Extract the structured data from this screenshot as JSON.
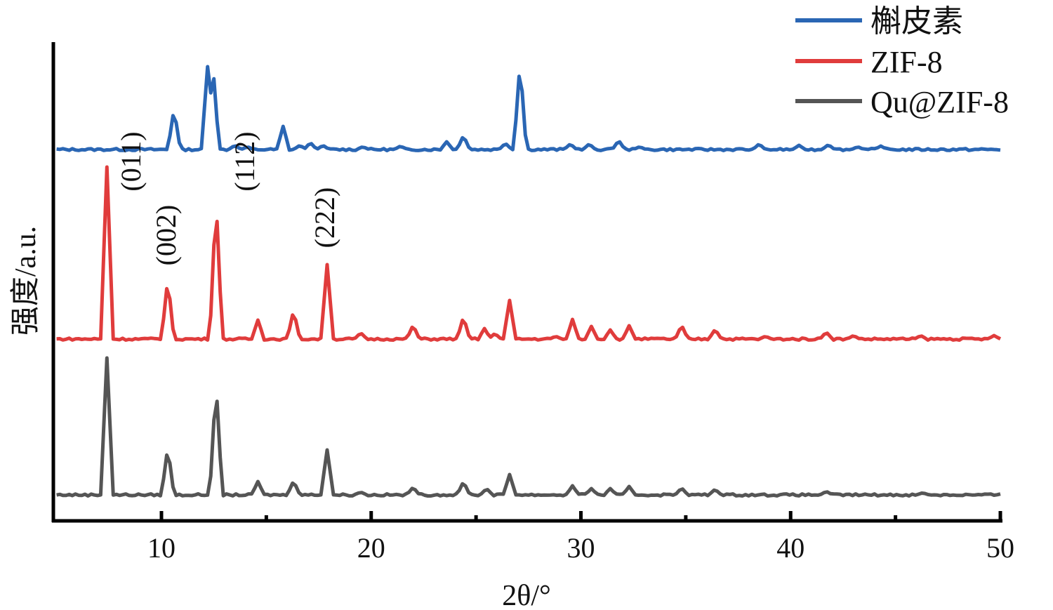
{
  "chart_data": {
    "type": "line",
    "title": "",
    "xlabel": "2θ/°",
    "ylabel": "强度/a.u.",
    "xlim": [
      5,
      50
    ],
    "xticks": [
      10,
      20,
      30,
      40,
      50
    ],
    "xminor": [
      15,
      25,
      35,
      45
    ],
    "yticks": [],
    "grid": false,
    "legend_position": "top-right",
    "series": [
      {
        "name": "槲皮素",
        "color": "#2a66b4",
        "peaks": [
          [
            10.6,
            58
          ],
          [
            12.2,
            118
          ],
          [
            12.45,
            121
          ],
          [
            13.5,
            6
          ],
          [
            14.1,
            4
          ],
          [
            15.8,
            33
          ],
          [
            16.6,
            6
          ],
          [
            17.1,
            10
          ],
          [
            17.7,
            6
          ],
          [
            19.6,
            4
          ],
          [
            21.4,
            5
          ],
          [
            23.6,
            11
          ],
          [
            24.4,
            20
          ],
          [
            26.4,
            9
          ],
          [
            27.1,
            125
          ],
          [
            29.5,
            8
          ],
          [
            30.4,
            8
          ],
          [
            31.8,
            13
          ],
          [
            32.8,
            4
          ],
          [
            38.5,
            8
          ],
          [
            40.4,
            6
          ],
          [
            41.8,
            7
          ],
          [
            43.2,
            4
          ],
          [
            44.3,
            5
          ]
        ]
      },
      {
        "name": "ZIF-8",
        "color": "#e03c3c",
        "peaks": [
          [
            7.4,
            245
          ],
          [
            10.3,
            86
          ],
          [
            12.6,
            201
          ],
          [
            14.6,
            27
          ],
          [
            16.3,
            41
          ],
          [
            17.9,
            106
          ],
          [
            19.5,
            9
          ],
          [
            22.0,
            20
          ],
          [
            24.4,
            32
          ],
          [
            25.4,
            15
          ],
          [
            25.9,
            8
          ],
          [
            26.6,
            55
          ],
          [
            28.8,
            4
          ],
          [
            29.6,
            28
          ],
          [
            30.5,
            18
          ],
          [
            31.4,
            13
          ],
          [
            32.3,
            19
          ],
          [
            34.8,
            20
          ],
          [
            36.4,
            14
          ],
          [
            38.8,
            4
          ],
          [
            41.7,
            10
          ],
          [
            43.0,
            5
          ],
          [
            46.2,
            5
          ],
          [
            49.7,
            5
          ]
        ]
      },
      {
        "name": "Qu@ZIF-8",
        "color": "#555555",
        "peaks": [
          [
            7.4,
            195
          ],
          [
            10.3,
            68
          ],
          [
            12.6,
            160
          ],
          [
            14.6,
            19
          ],
          [
            16.3,
            20
          ],
          [
            17.9,
            64
          ],
          [
            19.5,
            4
          ],
          [
            22.0,
            11
          ],
          [
            24.4,
            19
          ],
          [
            25.5,
            9
          ],
          [
            26.6,
            29
          ],
          [
            29.6,
            13
          ],
          [
            30.5,
            9
          ],
          [
            31.4,
            9
          ],
          [
            32.3,
            12
          ],
          [
            34.8,
            10
          ],
          [
            36.4,
            8
          ],
          [
            41.7,
            5
          ],
          [
            46.3,
            3
          ]
        ]
      }
    ],
    "annotations": [
      {
        "text": "(011)",
        "x": 7.4,
        "series": "ZIF-8"
      },
      {
        "text": "(002)",
        "x": 10.3,
        "series": "ZIF-8"
      },
      {
        "text": "(112)",
        "x": 12.6,
        "series": "ZIF-8"
      },
      {
        "text": "(222)",
        "x": 17.9,
        "series": "ZIF-8"
      }
    ]
  }
}
